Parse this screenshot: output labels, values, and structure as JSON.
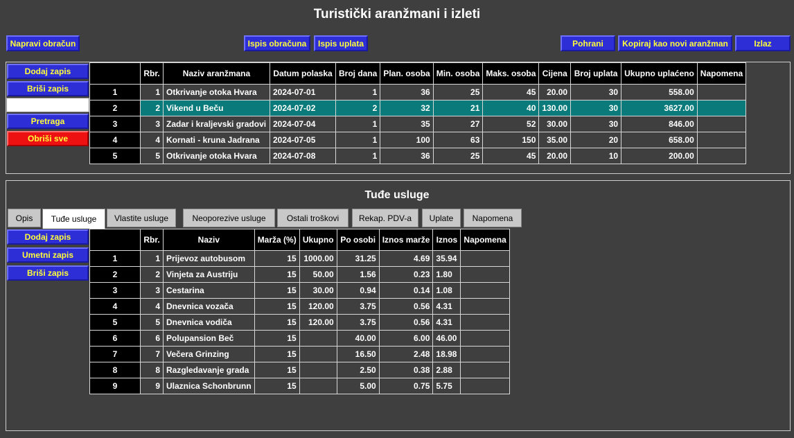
{
  "title": "Turistički aranžmani i izleti",
  "toolbar": {
    "make_calc": "Napravi obračun",
    "print_calc": "Ispis obračuna",
    "print_payments": "Ispis uplata",
    "save": "Pohrani",
    "copy_new": "Kopiraj kao novi aranžman",
    "exit": "Izlaz"
  },
  "top_side": {
    "add": "Dodaj zapis",
    "delete": "Briši zapis",
    "search_value": "",
    "search": "Pretraga",
    "delete_all": "Obriši sve"
  },
  "top_table": {
    "headers": [
      "",
      "Rbr.",
      "Naziv aranžmana",
      "Datum polaska",
      "Broj dana",
      "Plan. osoba",
      "Min. osoba",
      "Maks. osoba",
      "Cijena",
      "Broj uplata",
      "Ukupno uplaćeno",
      "Napomena"
    ],
    "rows": [
      [
        "1",
        "1",
        "Otkrivanje otoka Hvara",
        "2024-07-01",
        "1",
        "36",
        "25",
        "45",
        "20.00",
        "30",
        "558.00",
        ""
      ],
      [
        "2",
        "2",
        "Vikend u Beču",
        "2024-07-02",
        "2",
        "32",
        "21",
        "40",
        "130.00",
        "30",
        "3627.00",
        ""
      ],
      [
        "3",
        "3",
        "Zadar i kraljevski gradovi",
        "2024-07-04",
        "1",
        "35",
        "27",
        "52",
        "30.00",
        "30",
        "846.00",
        ""
      ],
      [
        "4",
        "4",
        "Kornati - kruna Jadrana",
        "2024-07-05",
        "1",
        "100",
        "63",
        "150",
        "35.00",
        "20",
        "658.00",
        ""
      ],
      [
        "5",
        "5",
        "Otkrivanje otoka Hvara",
        "2024-07-08",
        "1",
        "36",
        "25",
        "45",
        "20.00",
        "10",
        "200.00",
        ""
      ]
    ],
    "selected_row": 1
  },
  "section_title": "Tuđe usluge",
  "tabs": [
    "Opis",
    "Tuđe usluge",
    "Vlastite usluge",
    "Neoporezive usluge",
    "Ostali troškovi",
    "Rekap. PDV-a",
    "Uplate",
    "Napomena"
  ],
  "active_tab": 1,
  "bottom_side": {
    "add": "Dodaj zapis",
    "insert": "Umetni zapis",
    "delete": "Briši zapis"
  },
  "bottom_table": {
    "headers": [
      "",
      "Rbr.",
      "Naziv",
      "Marža (%)",
      "Ukupno",
      "Po osobi",
      "Iznos marže",
      "Iznos",
      "Napomena"
    ],
    "rows": [
      [
        "1",
        "1",
        "Prijevoz autobusom",
        "15",
        "1000.00",
        "31.25",
        "4.69",
        "35.94",
        ""
      ],
      [
        "2",
        "2",
        "Vinjeta za Austriju",
        "15",
        "50.00",
        "1.56",
        "0.23",
        "1.80",
        ""
      ],
      [
        "3",
        "3",
        "Cestarina",
        "15",
        "30.00",
        "0.94",
        "0.14",
        "1.08",
        ""
      ],
      [
        "4",
        "4",
        "Dnevnica vozača",
        "15",
        "120.00",
        "3.75",
        "0.56",
        "4.31",
        ""
      ],
      [
        "5",
        "5",
        "Dnevnica vodiča",
        "15",
        "120.00",
        "3.75",
        "0.56",
        "4.31",
        ""
      ],
      [
        "6",
        "6",
        "Polupansion Beč",
        "15",
        "",
        "40.00",
        "6.00",
        "46.00",
        ""
      ],
      [
        "7",
        "7",
        "Večera Grinzing",
        "15",
        "",
        "16.50",
        "2.48",
        "18.98",
        ""
      ],
      [
        "8",
        "8",
        "Razgledavanje grada",
        "15",
        "",
        "2.50",
        "0.38",
        "2.88",
        ""
      ],
      [
        "9",
        "9",
        "Ulaznica Schonbrunn",
        "15",
        "",
        "5.00",
        "0.75",
        "5.75",
        ""
      ]
    ]
  },
  "colors": {
    "background": "#3f3f3f",
    "button": "#2e2ed6",
    "button_text": "#ffff3a",
    "danger": "#ee1111",
    "selected_row": "#0a7a7a"
  }
}
